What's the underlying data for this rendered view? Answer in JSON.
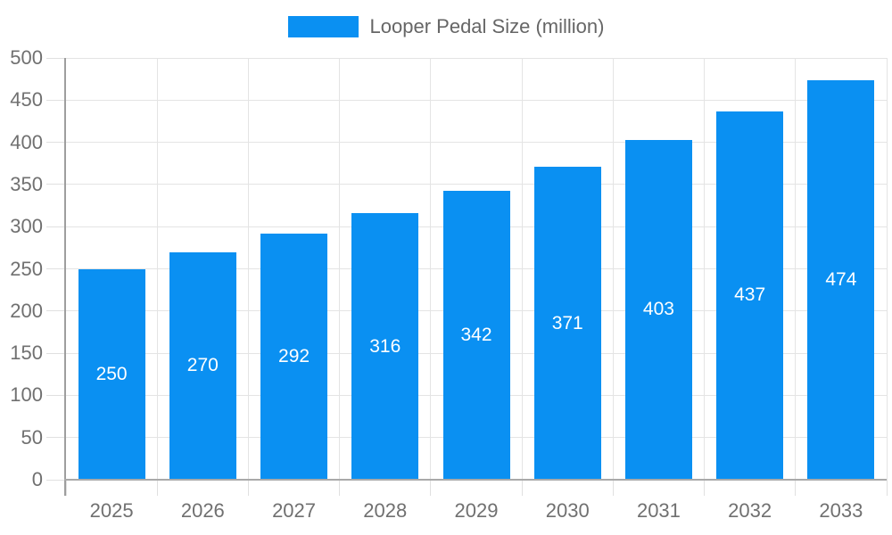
{
  "chart_data": {
    "type": "bar",
    "title": "Looper Pedal Size (million)",
    "series": [
      {
        "name": "Looper Pedal Size (million)",
        "values": [
          250,
          270,
          292,
          316,
          342,
          371,
          403,
          437,
          474
        ]
      }
    ],
    "categories": [
      "2025",
      "2026",
      "2027",
      "2028",
      "2029",
      "2030",
      "2031",
      "2032",
      "2033"
    ],
    "values": [
      250,
      270,
      292,
      316,
      342,
      371,
      403,
      437,
      474
    ],
    "value_labels": [
      "250",
      "270",
      "292",
      "316",
      "342",
      "371",
      "403",
      "437",
      "474"
    ],
    "xlabel": "",
    "ylabel": "",
    "ylim": [
      0,
      500
    ],
    "yticks": [
      0,
      50,
      100,
      150,
      200,
      250,
      300,
      350,
      400,
      450,
      500
    ],
    "grid": "on",
    "legend_position": "top-center"
  },
  "colors": {
    "bar": "#0a90f2",
    "grid": "#e4e4e4",
    "tick": "#e0e0e0",
    "axis_y": "#9e9e9e",
    "axis_x": "#a9a9a9",
    "axis_text": "#707070",
    "legend_text": "#666666",
    "value_text": "#ffffff",
    "background": "#ffffff"
  }
}
